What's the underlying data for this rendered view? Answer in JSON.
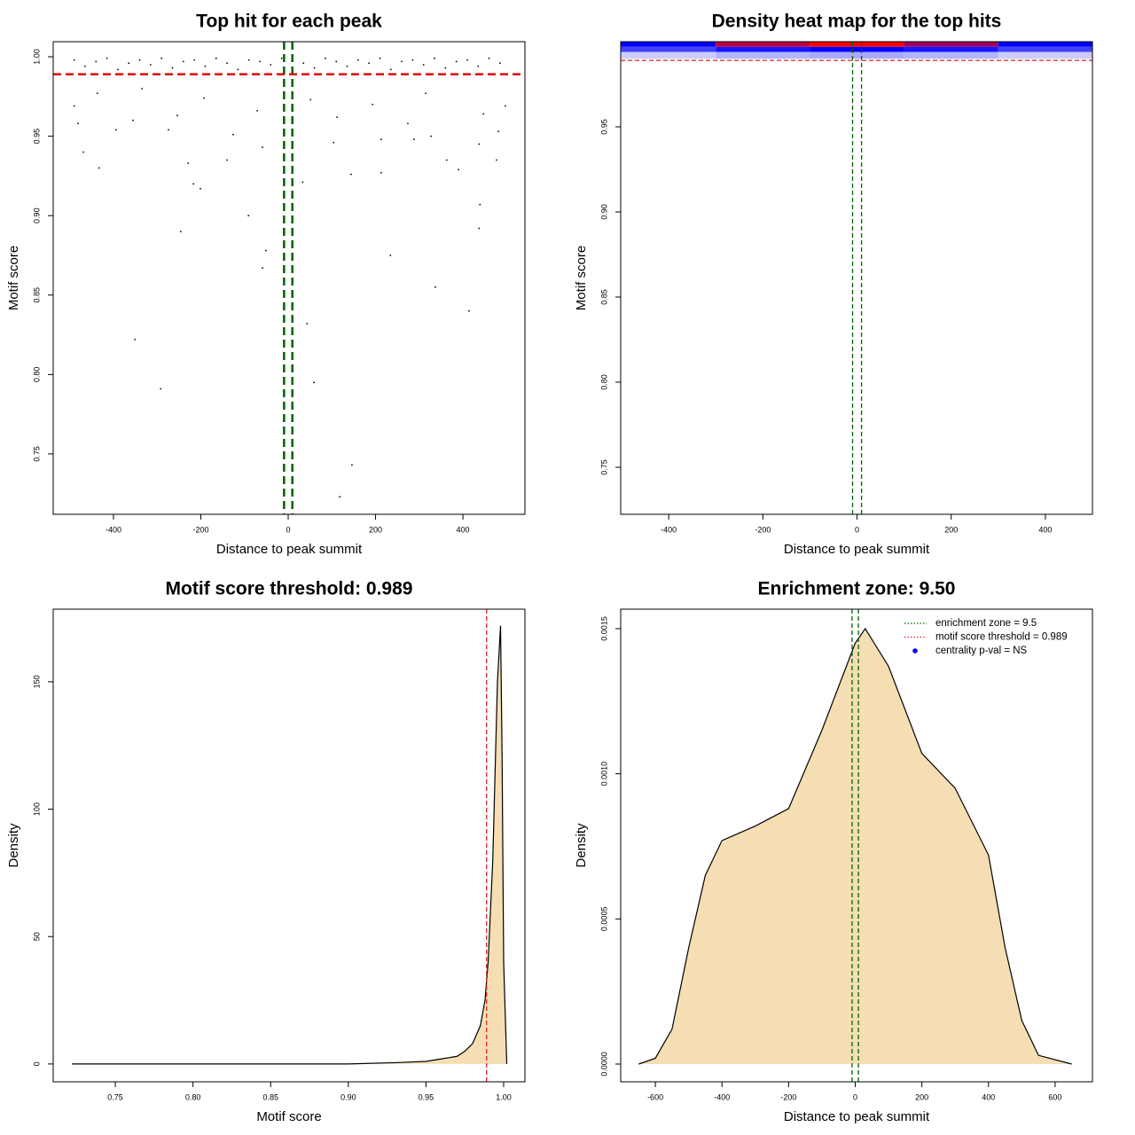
{
  "chart_data": [
    {
      "type": "scatter",
      "title": "Top hit for each peak",
      "xlabel": "Distance to peak summit",
      "ylabel": "Motif score",
      "xlim": [
        -538,
        542
      ],
      "ylim": [
        0.712,
        1.0095
      ],
      "xticks": [
        -400,
        -200,
        0,
        200,
        400
      ],
      "yticks": [
        0.75,
        {
          "value": 0.8,
          "label": "0.80"
        },
        0.85,
        {
          "value": 0.9,
          "label": "0.90"
        },
        0.95,
        {
          "value": 1.0,
          "label": "1.00"
        }
      ],
      "color": "#000000",
      "x": [
        -351,
        -292,
        118,
        146,
        59,
        43,
        414,
        337,
        234,
        -59,
        -51,
        -246,
        -91,
        437,
        439,
        -217,
        -201,
        -229,
        -433,
        -469,
        33,
        390,
        477,
        363,
        -140,
        144,
        213,
        -394,
        -481,
        -126,
        -59,
        104,
        288,
        437,
        481,
        -274,
        213,
        327,
        -490,
        -437,
        -335,
        -193,
        -71,
        51,
        193,
        315,
        497,
        -254,
        -355,
        112,
        274,
        447,
        -490,
        -465,
        -440,
        -415,
        -390,
        -365,
        -340,
        -315,
        -290,
        -265,
        -240,
        -215,
        -190,
        -165,
        -140,
        -115,
        -90,
        -65,
        -40,
        -15,
        10,
        35,
        60,
        85,
        110,
        135,
        160,
        185,
        210,
        235,
        260,
        285,
        310,
        335,
        360,
        385,
        410,
        435,
        460,
        485
      ],
      "values": [
        0.822,
        0.791,
        0.723,
        0.743,
        0.795,
        0.832,
        0.84,
        0.855,
        0.875,
        0.867,
        0.878,
        0.89,
        0.9,
        0.892,
        0.907,
        0.92,
        0.917,
        0.933,
        0.93,
        0.94,
        0.921,
        0.929,
        0.935,
        0.935,
        0.935,
        0.926,
        0.927,
        0.954,
        0.958,
        0.951,
        0.943,
        0.946,
        0.948,
        0.945,
        0.953,
        0.954,
        0.948,
        0.95,
        0.969,
        0.977,
        0.98,
        0.974,
        0.966,
        0.973,
        0.97,
        0.977,
        0.969,
        0.963,
        0.96,
        0.962,
        0.958,
        0.964,
        0.998,
        0.994,
        0.997,
        0.999,
        0.992,
        0.996,
        0.998,
        0.995,
        0.999,
        0.993,
        0.997,
        0.998,
        0.994,
        0.999,
        0.996,
        0.992,
        0.998,
        0.997,
        0.995,
        0.999,
        0.998,
        0.996,
        0.993,
        0.999,
        0.997,
        0.994,
        0.998,
        0.996,
        0.999,
        0.992,
        0.997,
        0.998,
        0.995,
        0.999,
        0.993,
        0.997,
        0.998,
        0.994,
        0.999,
        0.996
      ],
      "reference_lines": [
        {
          "axis": "x",
          "value": -9.5,
          "color": "#006400",
          "width": 2.5
        },
        {
          "axis": "x",
          "value": 9.5,
          "color": "#006400",
          "width": 2.5
        },
        {
          "axis": "y",
          "value": 0.989,
          "color": "#dd0000",
          "width": 2.5
        }
      ]
    },
    {
      "type": "heatmap",
      "title": "Density heat map for the top hits",
      "xlabel": "Distance to peak summit",
      "ylabel": "Motif score",
      "xlim": [
        -502,
        500
      ],
      "ylim": [
        0.7224,
        1.0
      ],
      "xticks": [
        -400,
        -200,
        0,
        200,
        400
      ],
      "yticks": [
        0.75,
        {
          "value": 0.8,
          "label": "0.80"
        },
        0.85,
        {
          "value": 0.9,
          "label": "0.90"
        },
        0.95
      ],
      "colors": [
        "#ffffff",
        "#0000ff",
        "#ff0000"
      ],
      "x_edges": [
        -502,
        -300,
        -100,
        100,
        300,
        500
      ],
      "y_edges": [
        0.99,
        0.994,
        0.997,
        1.0
      ],
      "values": [
        [
          0.12,
          0.18,
          0.2,
          0.18,
          0.12
        ],
        [
          0.45,
          0.55,
          0.6,
          0.55,
          0.45
        ],
        [
          0.6,
          0.9,
          1.0,
          0.85,
          0.6
        ]
      ],
      "reference_lines": [
        {
          "axis": "x",
          "value": -9.5,
          "color": "#006400",
          "width": 1.3
        },
        {
          "axis": "x",
          "value": 9.5,
          "color": "#006400",
          "width": 1.3
        },
        {
          "axis": "y",
          "value": 0.989,
          "color": "#dd2222",
          "width": 1.3
        }
      ]
    },
    {
      "type": "area",
      "title": "Motif score threshold: 0.989",
      "xlabel": "Motif score",
      "ylabel": "Density",
      "xlim": [
        0.71,
        1.0137
      ],
      "ylim": [
        -7,
        178.5
      ],
      "xticks": [
        0.75,
        {
          "value": 0.8,
          "label": "0.80"
        },
        0.85,
        {
          "value": 0.9,
          "label": "0.90"
        },
        0.95,
        {
          "value": 1.0,
          "label": "1.00"
        }
      ],
      "yticks": [
        0,
        50,
        100,
        150
      ],
      "color": "#f5deb3",
      "x": [
        0.722,
        0.9,
        0.93,
        0.95,
        0.96,
        0.97,
        0.975,
        0.98,
        0.985,
        0.988,
        0.99,
        0.993,
        0.996,
        0.998,
        0.999,
        1.0,
        1.002
      ],
      "values": [
        0,
        0,
        0.5,
        1,
        2,
        3,
        5,
        8,
        15,
        25,
        40,
        80,
        150,
        172,
        120,
        40,
        0
      ],
      "reference_lines": [
        {
          "axis": "x",
          "value": 0.989,
          "color": "#dd2222",
          "width": 1.3
        }
      ]
    },
    {
      "type": "area",
      "title": "Enrichment zone: 9.50",
      "xlabel": "Distance to peak summit",
      "ylabel": "Density",
      "xlim": [
        -704,
        712
      ],
      "ylim": [
        -6.11e-05,
        0.001567
      ],
      "xticks": [
        -600,
        -400,
        -200,
        0,
        200,
        400,
        600
      ],
      "yticks": [
        {
          "value": 0,
          "label": "0.0000"
        },
        0.0005,
        {
          "value": 0.001,
          "label": "0.0010"
        },
        0.0015
      ],
      "color": "#f5deb3",
      "x": [
        -650,
        -600,
        -550,
        -500,
        -450,
        -400,
        -300,
        -200,
        -100,
        0,
        30,
        100,
        200,
        300,
        400,
        450,
        500,
        550,
        650
      ],
      "values": [
        0,
        2e-05,
        0.00012,
        0.0004,
        0.00065,
        0.00077,
        0.00082,
        0.00088,
        0.00115,
        0.00145,
        0.0015,
        0.00137,
        0.00107,
        0.00095,
        0.00072,
        0.0004,
        0.00015,
        3e-05,
        0
      ],
      "reference_lines": [
        {
          "axis": "x",
          "value": -9.5,
          "color": "#006400",
          "width": 1.3
        },
        {
          "axis": "x",
          "value": 9.5,
          "color": "#006400",
          "width": 1.3
        }
      ],
      "legend_position": "topright",
      "legend": [
        {
          "label": "enrichment zone = 9.5",
          "color": "#006400",
          "style": "dotted"
        },
        {
          "label": "motif score threshold = 0.989",
          "color": "#dd2222",
          "style": "dotted"
        },
        {
          "label": "centrality p-val = NS",
          "color": "#0000ff",
          "style": "point"
        }
      ]
    }
  ]
}
